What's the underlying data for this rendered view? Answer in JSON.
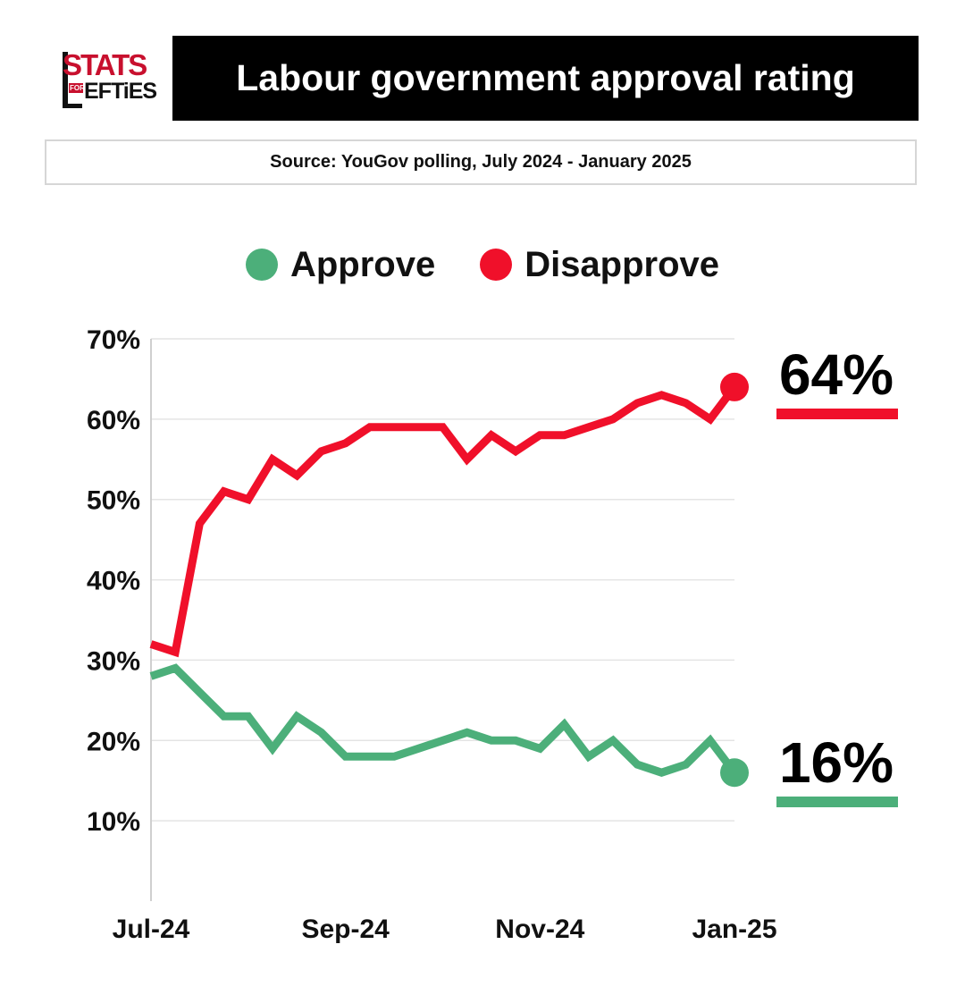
{
  "logo": {
    "stats": "STATS",
    "for": "FOR",
    "efties": "EFTiES"
  },
  "header": {
    "title": "Labour government approval rating",
    "source": "Source: YouGov polling, July 2024 - January 2025"
  },
  "colors": {
    "approve": "#4caf7a",
    "disapprove": "#f0102a",
    "grid": "#e4e4e4",
    "axis": "#cfcfcf"
  },
  "chart_data": {
    "type": "line",
    "title": "Labour government approval rating",
    "ylim": [
      0,
      70
    ],
    "yticks": [
      "10%",
      "20%",
      "30%",
      "40%",
      "50%",
      "60%",
      "70%"
    ],
    "ytick_values": [
      10,
      20,
      30,
      40,
      50,
      60,
      70
    ],
    "xticks": [
      "Jul-24",
      "Sep-24",
      "Nov-24",
      "Jan-25"
    ],
    "grid": true,
    "legend": "top-center",
    "series": [
      {
        "name": "Approve",
        "values": [
          28,
          29,
          26,
          23,
          23,
          19,
          23,
          21,
          18,
          18,
          18,
          19,
          20,
          21,
          20,
          20,
          19,
          22,
          18,
          20,
          17,
          16,
          17,
          20,
          16
        ],
        "end_label": "16%"
      },
      {
        "name": "Disapprove",
        "values": [
          32,
          31,
          47,
          51,
          50,
          55,
          53,
          56,
          57,
          59,
          59,
          59,
          59,
          55,
          58,
          56,
          58,
          58,
          59,
          60,
          62,
          63,
          62,
          60,
          64
        ],
        "end_label": "64%"
      }
    ]
  }
}
